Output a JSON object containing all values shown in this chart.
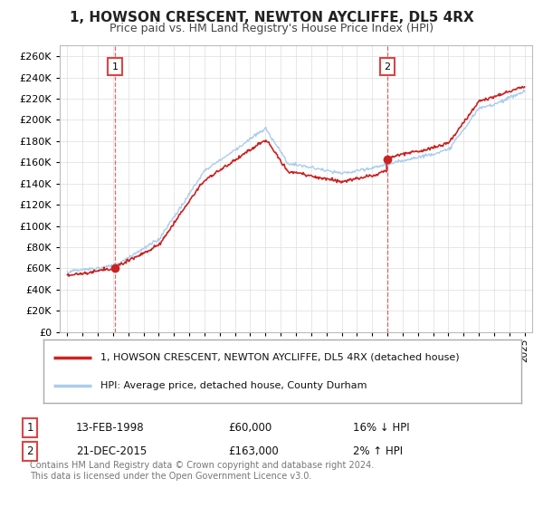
{
  "title": "1, HOWSON CRESCENT, NEWTON AYCLIFFE, DL5 4RX",
  "subtitle": "Price paid vs. HM Land Registry's House Price Index (HPI)",
  "xlim": [
    1994.5,
    2025.5
  ],
  "ylim": [
    0,
    270000
  ],
  "yticks": [
    0,
    20000,
    40000,
    60000,
    80000,
    100000,
    120000,
    140000,
    160000,
    180000,
    200000,
    220000,
    240000,
    260000
  ],
  "xticks": [
    1995,
    1996,
    1997,
    1998,
    1999,
    2000,
    2001,
    2002,
    2003,
    2004,
    2005,
    2006,
    2007,
    2008,
    2009,
    2010,
    2011,
    2012,
    2013,
    2014,
    2015,
    2016,
    2017,
    2018,
    2019,
    2020,
    2021,
    2022,
    2023,
    2024,
    2025
  ],
  "sale1_x": 1998.12,
  "sale1_y": 60000,
  "sale1_label": "1",
  "sale2_x": 2015.97,
  "sale2_y": 163000,
  "sale2_label": "2",
  "hpi_color": "#aaccee",
  "price_color": "#cc2222",
  "dashed_color": "#dd4444",
  "background_color": "#ffffff",
  "grid_color": "#dddddd",
  "legend_label1": "1, HOWSON CRESCENT, NEWTON AYCLIFFE, DL5 4RX (detached house)",
  "legend_label2": "HPI: Average price, detached house, County Durham",
  "annotation1_date": "13-FEB-1998",
  "annotation1_price": "£60,000",
  "annotation1_hpi": "16% ↓ HPI",
  "annotation2_date": "21-DEC-2015",
  "annotation2_price": "£163,000",
  "annotation2_hpi": "2% ↑ HPI",
  "footnote": "Contains HM Land Registry data © Crown copyright and database right 2024.\nThis data is licensed under the Open Government Licence v3.0."
}
